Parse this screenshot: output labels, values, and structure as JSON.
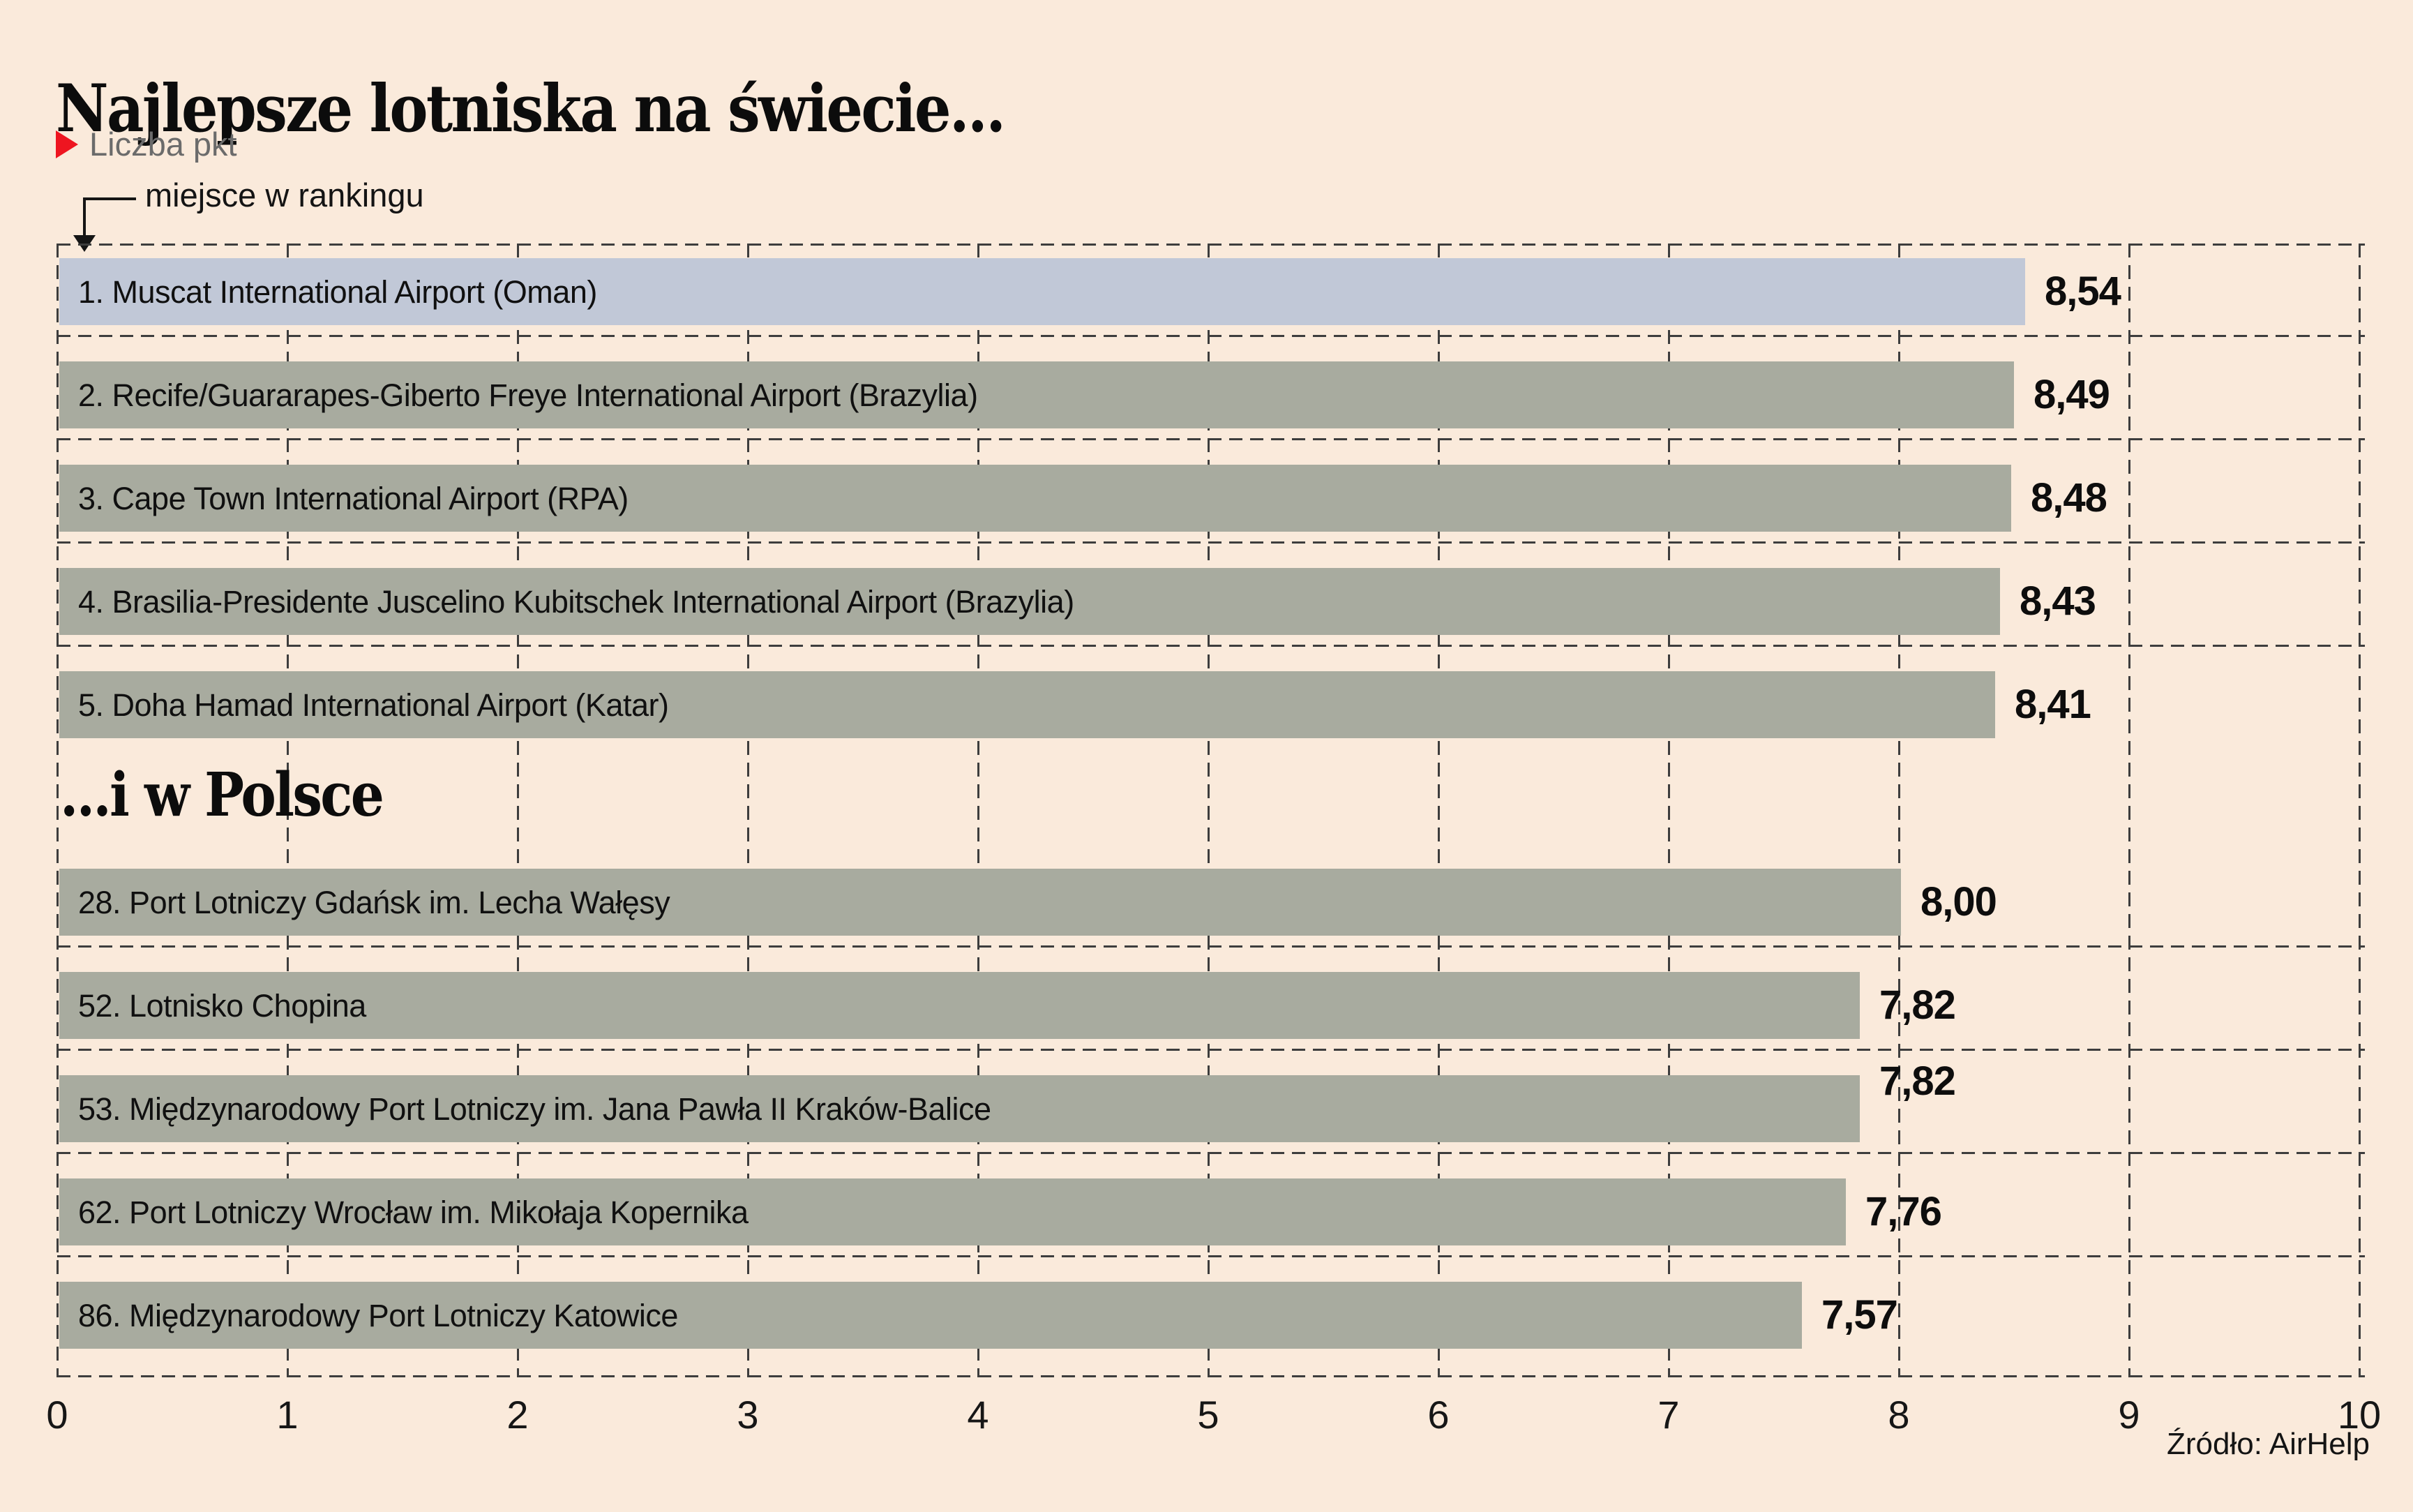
{
  "title": "Najlepsze lotniska na świecie...",
  "legend": {
    "label": "Liczba pkt",
    "marker_color": "#ee1520"
  },
  "annotation": {
    "label": "miejsce w rankingu"
  },
  "source": "Źródło: AirHelp",
  "colors": {
    "background": "#faeadb",
    "bar_default": "#a8ab9f",
    "bar_highlight": "#c1c8d7",
    "grid_line": "#3d3d3d",
    "legend_text": "#6b6b6b",
    "accent_red": "#ee1520"
  },
  "chart_data": {
    "type": "bar",
    "orientation": "horizontal",
    "title": "Najlepsze lotniska na świecie...",
    "value_legend": "Liczba pkt",
    "rank_annotation": "miejsce w rankingu",
    "xlim": [
      0,
      10
    ],
    "x_ticks": [
      "0",
      "1",
      "2",
      "3",
      "4",
      "5",
      "6",
      "7",
      "8",
      "9",
      "10"
    ],
    "grid": "dashed",
    "source": "Źródło: AirHelp",
    "sections": [
      {
        "heading": "",
        "bars": [
          {
            "rank": "1",
            "label": "1. Muscat International Airport (Oman)",
            "value": 8.54,
            "display": "8,54",
            "highlight": true,
            "value_label_raised": false
          },
          {
            "rank": "2",
            "label": "2. Recife/Guararapes-Giberto Freye International Airport (Brazylia)",
            "value": 8.49,
            "display": "8,49",
            "highlight": false,
            "value_label_raised": false
          },
          {
            "rank": "3",
            "label": "3. Cape Town International Airport (RPA)",
            "value": 8.48,
            "display": "8,48",
            "highlight": false,
            "value_label_raised": false
          },
          {
            "rank": "4",
            "label": "4. Brasilia-Presidente Juscelino Kubitschek International Airport (Brazylia)",
            "value": 8.43,
            "display": "8,43",
            "highlight": false,
            "value_label_raised": false
          },
          {
            "rank": "5",
            "label": "5. Doha Hamad International Airport (Katar)",
            "value": 8.41,
            "display": "8,41",
            "highlight": false,
            "value_label_raised": false
          }
        ]
      },
      {
        "heading": "...i w Polsce",
        "bars": [
          {
            "rank": "28",
            "label": "28. Port Lotniczy Gdańsk im. Lecha Wałęsy",
            "value": 8.0,
            "display": "8,00",
            "highlight": false,
            "value_label_raised": false
          },
          {
            "rank": "52",
            "label": "52. Lotnisko Chopina",
            "value": 7.82,
            "display": "7,82",
            "highlight": false,
            "value_label_raised": false
          },
          {
            "rank": "53",
            "label": "53. Międzynarodowy Port Lotniczy im. Jana Pawła II Kraków-Balice",
            "value": 7.82,
            "display": "7,82",
            "highlight": false,
            "value_label_raised": true
          },
          {
            "rank": "62",
            "label": "62. Port Lotniczy Wrocław im. Mikołaja Kopernika",
            "value": 7.76,
            "display": "7,76",
            "highlight": false,
            "value_label_raised": false
          },
          {
            "rank": "86",
            "label": "86. Międzynarodowy Port Lotniczy Katowice",
            "value": 7.57,
            "display": "7,57",
            "highlight": false,
            "value_label_raised": false
          }
        ]
      }
    ]
  }
}
